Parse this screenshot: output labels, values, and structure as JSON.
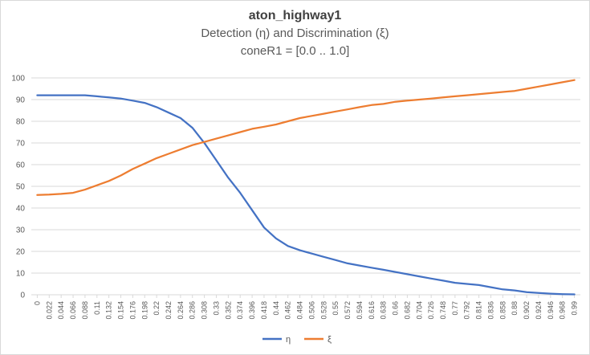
{
  "chart_data": {
    "type": "line",
    "title": "aton_highway1",
    "subtitle": "Detection (η) and Discrimination (ξ)",
    "subtitle2": "coneR1 = [0.0 .. 1.0]",
    "xlabel": "",
    "ylabel": "",
    "ylim": [
      0,
      100
    ],
    "yticks": [
      0,
      10,
      20,
      30,
      40,
      50,
      60,
      70,
      80,
      90,
      100
    ],
    "grid": true,
    "legend": "bottom",
    "x": [
      0,
      0.022,
      0.044,
      0.066,
      0.088,
      0.11,
      0.132,
      0.154,
      0.176,
      0.198,
      0.22,
      0.242,
      0.264,
      0.286,
      0.308,
      0.33,
      0.352,
      0.374,
      0.396,
      0.418,
      0.44,
      0.462,
      0.484,
      0.506,
      0.528,
      0.55,
      0.572,
      0.594,
      0.616,
      0.638,
      0.66,
      0.682,
      0.704,
      0.726,
      0.748,
      0.77,
      0.792,
      0.814,
      0.836,
      0.858,
      0.88,
      0.902,
      0.924,
      0.946,
      0.968,
      0.99
    ],
    "series": [
      {
        "name": "η",
        "color": "#4472c4",
        "values": [
          92,
          92,
          92,
          92,
          92,
          91.5,
          91,
          90.5,
          89.5,
          88.5,
          86.5,
          84,
          81.5,
          77,
          70,
          62,
          54,
          47,
          39,
          31,
          26,
          22.5,
          20.5,
          19,
          17.5,
          16,
          14.5,
          13.5,
          12.5,
          11.5,
          10.5,
          9.5,
          8.5,
          7.5,
          6.5,
          5.5,
          5,
          4.5,
          3.5,
          2.5,
          2,
          1.2,
          0.8,
          0.5,
          0.3,
          0.2
        ]
      },
      {
        "name": "ξ",
        "color": "#ed7d31",
        "values": [
          46,
          46.2,
          46.5,
          47,
          48.5,
          50.5,
          52.5,
          55,
          58,
          60.5,
          63,
          65,
          67,
          69,
          70.5,
          72,
          73.5,
          75,
          76.5,
          77.5,
          78.5,
          80,
          81.5,
          82.5,
          83.5,
          84.5,
          85.5,
          86.5,
          87.5,
          88,
          89,
          89.5,
          90,
          90.5,
          91,
          91.5,
          92,
          92.5,
          93,
          93.5,
          94,
          95,
          96,
          97,
          98,
          99
        ]
      }
    ]
  }
}
